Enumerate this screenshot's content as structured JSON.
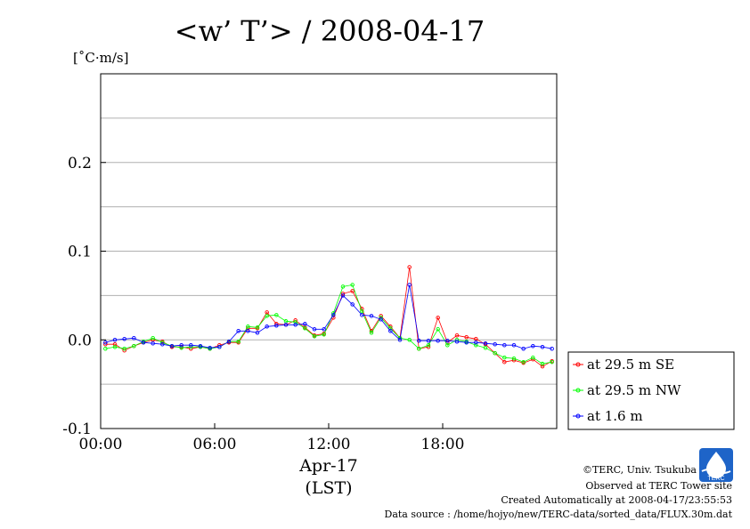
{
  "chart_data": {
    "type": "line",
    "title": "<w’ T’> / 2008-04-17",
    "ylabel": "[˚C·m/s]",
    "xlabel_date": "Apr-17",
    "xlabel_tz": "(LST)",
    "x_ticks": [
      "00:00",
      "06:00",
      "12:00",
      "18:00"
    ],
    "x_tick_hours": [
      0,
      6,
      12,
      18
    ],
    "xlim": [
      0,
      24
    ],
    "ylim": [
      -0.1,
      0.3
    ],
    "y_ticks": [
      -0.1,
      0.0,
      0.1,
      0.2
    ],
    "y_tick_labels": [
      "-0.1",
      "0.0",
      "0.1",
      "0.2"
    ],
    "y_grid": [
      -0.05,
      0.0,
      0.05,
      0.1,
      0.15,
      0.2,
      0.25
    ],
    "grid": true,
    "legend_position": "right-bottom outside",
    "x": [
      0.25,
      0.75,
      1.25,
      1.75,
      2.25,
      2.75,
      3.25,
      3.75,
      4.25,
      4.75,
      5.25,
      5.75,
      6.25,
      6.75,
      7.25,
      7.75,
      8.25,
      8.75,
      9.25,
      9.75,
      10.25,
      10.75,
      11.25,
      11.75,
      12.25,
      12.75,
      13.25,
      13.75,
      14.25,
      14.75,
      15.25,
      15.75,
      16.25,
      16.75,
      17.25,
      17.75,
      18.25,
      18.75,
      19.25,
      19.75,
      20.25,
      20.75,
      21.25,
      21.75,
      22.25,
      22.75,
      23.25,
      23.75
    ],
    "series": [
      {
        "name": "at 29.5 m SE",
        "color": "#ff0000",
        "values": [
          -0.005,
          -0.005,
          -0.012,
          -0.007,
          -0.003,
          0.0,
          -0.002,
          -0.008,
          -0.008,
          -0.01,
          -0.008,
          -0.01,
          -0.006,
          -0.003,
          -0.003,
          0.013,
          0.013,
          0.031,
          0.018,
          0.017,
          0.022,
          0.014,
          0.005,
          0.007,
          0.025,
          0.052,
          0.055,
          0.035,
          0.01,
          0.027,
          0.015,
          0.002,
          0.082,
          -0.01,
          -0.008,
          0.025,
          -0.003,
          0.005,
          0.003,
          0.001,
          -0.005,
          -0.015,
          -0.025,
          -0.023,
          -0.026,
          -0.022,
          -0.03,
          -0.024
        ]
      },
      {
        "name": "at 29.5 m NW",
        "color": "#00ff00",
        "values": [
          -0.01,
          -0.008,
          -0.01,
          -0.007,
          -0.002,
          0.002,
          -0.003,
          -0.007,
          -0.009,
          -0.008,
          -0.008,
          -0.01,
          -0.008,
          -0.002,
          -0.002,
          0.015,
          0.014,
          0.027,
          0.028,
          0.021,
          0.02,
          0.013,
          0.004,
          0.006,
          0.03,
          0.06,
          0.062,
          0.032,
          0.008,
          0.025,
          0.013,
          0.002,
          0.0,
          -0.01,
          -0.006,
          0.012,
          -0.006,
          0.0,
          -0.002,
          -0.006,
          -0.009,
          -0.015,
          -0.02,
          -0.021,
          -0.025,
          -0.02,
          -0.027,
          -0.025
        ]
      },
      {
        "name": "at 1.6 m",
        "color": "#0000ff",
        "values": [
          -0.003,
          0.0,
          0.001,
          0.002,
          -0.003,
          -0.004,
          -0.005,
          -0.007,
          -0.006,
          -0.006,
          -0.007,
          -0.009,
          -0.008,
          -0.002,
          0.01,
          0.01,
          0.008,
          0.015,
          0.016,
          0.017,
          0.017,
          0.018,
          0.012,
          0.012,
          0.028,
          0.05,
          0.04,
          0.028,
          0.027,
          0.023,
          0.01,
          0.0,
          0.062,
          -0.001,
          -0.001,
          -0.001,
          -0.001,
          -0.002,
          -0.003,
          -0.003,
          -0.004,
          -0.005,
          -0.006,
          -0.006,
          -0.01,
          -0.007,
          -0.008,
          -0.01
        ]
      }
    ]
  },
  "credits": {
    "copyright": "©TERC, Univ. Tsukuba",
    "observed": "Observed at TERC Tower site",
    "created": "Created Automatically at 2008-04-17/23:55:53",
    "source": "Data source : /home/hojyo/new/TERC-data/sorted_data/FLUX.30m.dat",
    "logo_text": "TERC",
    "logo_color": "#1e64c8"
  }
}
